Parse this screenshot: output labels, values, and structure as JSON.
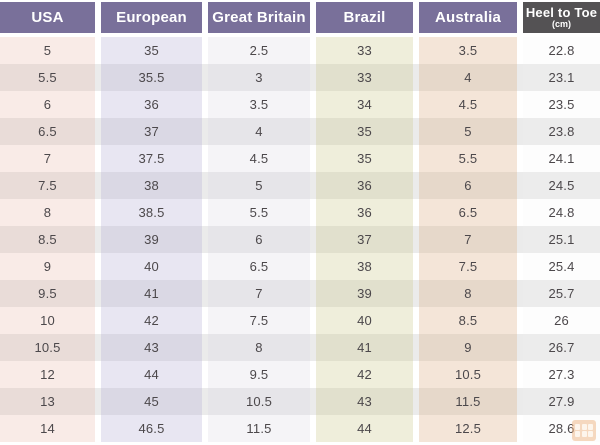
{
  "chart_data": {
    "type": "table",
    "title": "Shoe size conversion table",
    "row_count": 15,
    "columns": [
      {
        "label": "USA",
        "sublabel": "",
        "header_bg": "#79709a",
        "header_text_color": "#ffffff",
        "tint_light": "#f9ebe7",
        "tint_dark": "#e9dcd8",
        "values": [
          "5",
          "5.5",
          "6",
          "6.5",
          "7",
          "7.5",
          "8",
          "8.5",
          "9",
          "9.5",
          "10",
          "10.5",
          "12",
          "13",
          "14"
        ]
      },
      {
        "label": "European",
        "sublabel": "",
        "header_bg": "#79709a",
        "header_text_color": "#ffffff",
        "tint_light": "#e8e6f2",
        "tint_dark": "#dad8e4",
        "values": [
          "35",
          "35.5",
          "36",
          "37",
          "37.5",
          "38",
          "38.5",
          "39",
          "40",
          "41",
          "42",
          "43",
          "44",
          "45",
          "46.5"
        ]
      },
      {
        "label": "Great Britain",
        "sublabel": "",
        "header_bg": "#79709a",
        "header_text_color": "#ffffff",
        "tint_light": "#f5f4f7",
        "tint_dark": "#e6e5e9",
        "values": [
          "2.5",
          "3",
          "3.5",
          "4",
          "4.5",
          "5",
          "5.5",
          "6",
          "6.5",
          "7",
          "7.5",
          "8",
          "9.5",
          "10.5",
          "11.5"
        ]
      },
      {
        "label": "Brazil",
        "sublabel": "",
        "header_bg": "#79709a",
        "header_text_color": "#ffffff",
        "tint_light": "#efeedb",
        "tint_dark": "#e1e0cd",
        "values": [
          "33",
          "33",
          "34",
          "35",
          "35",
          "36",
          "36",
          "37",
          "38",
          "39",
          "40",
          "41",
          "42",
          "43",
          "44"
        ]
      },
      {
        "label": "Australia",
        "sublabel": "",
        "header_bg": "#79709a",
        "header_text_color": "#ffffff",
        "tint_light": "#f4e5d8",
        "tint_dark": "#e6d8ca",
        "values": [
          "3.5",
          "4",
          "4.5",
          "5",
          "5.5",
          "6",
          "6.5",
          "7",
          "7.5",
          "8",
          "8.5",
          "9",
          "10.5",
          "11.5",
          "12.5"
        ]
      },
      {
        "label": "Heel to Toe",
        "sublabel": "(cm)",
        "header_bg": "#545254",
        "header_text_color": "#ffffff",
        "tint_light": "#fdfdfd",
        "tint_dark": "#ececec",
        "values": [
          "22.8",
          "23.1",
          "23.5",
          "23.8",
          "24.1",
          "24.5",
          "24.8",
          "25.1",
          "25.4",
          "25.7",
          "26",
          "26.7",
          "27.3",
          "27.9",
          "28.6"
        ]
      }
    ],
    "row_stripe_light": "#ffffff",
    "row_stripe_dark": "#ebebeb",
    "body_text_color": "#4c484b"
  },
  "watermark": {
    "icon": "grid-logo-icon",
    "color": "#efb583"
  }
}
